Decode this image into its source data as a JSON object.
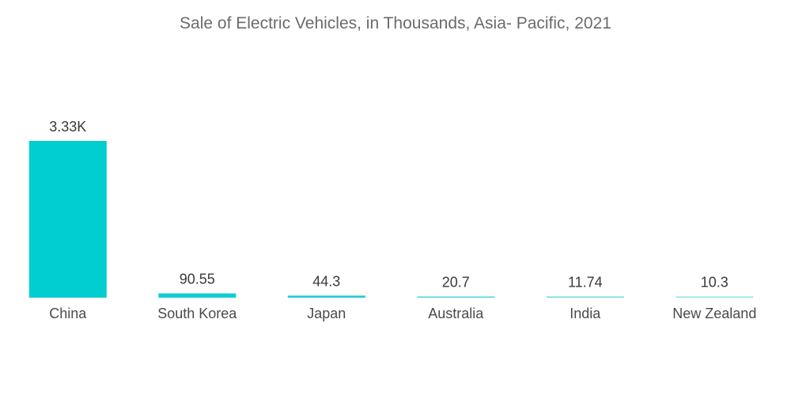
{
  "chart_data": {
    "type": "bar",
    "title": "Sale of Electric Vehicles, in Thousands, Asia- Pacific, 2021",
    "xlabel": "",
    "ylabel": "",
    "grid": false,
    "categories": [
      "China",
      "South Korea",
      "Japan",
      "Australia",
      "India",
      "New Zealand"
    ],
    "values": [
      3330,
      90.55,
      44.3,
      20.7,
      11.74,
      10.3
    ],
    "value_labels": [
      "3.33K",
      "90.55",
      "44.3",
      "20.7",
      "11.74",
      "10.3"
    ],
    "bar_colors": [
      "#00CED1",
      "#10CDD3",
      "#1FCCD2",
      "#4AD6DB",
      "#6BDDE1",
      "#8FE3E7"
    ],
    "ylim": [
      0,
      3330
    ]
  }
}
